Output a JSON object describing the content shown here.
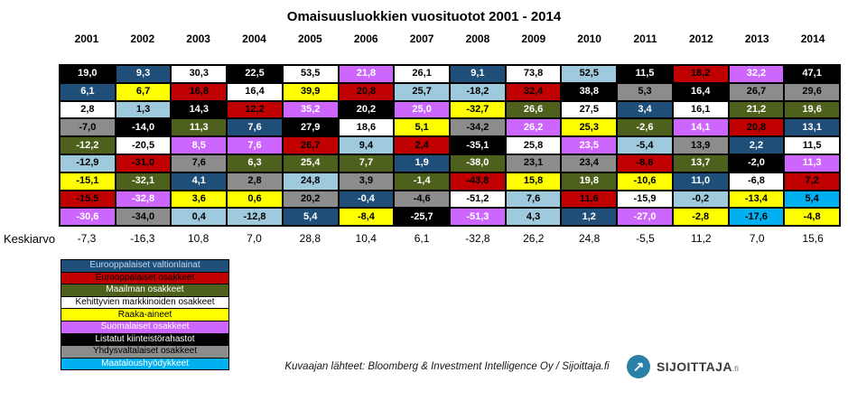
{
  "title": "Omaisuusluokkien vuosituotot 2001 - 2014",
  "caption": "Kuvaajan lähteet: Bloomberg & Investment Intelligence Oy / Sijoittaja.fi",
  "logo": {
    "text": "SIJOITTAJA",
    "suffix": ".fi",
    "circle_color": "#2B80A8",
    "arrow": "↗"
  },
  "chart_data": {
    "type": "table",
    "title": "Omaisuusluokkien vuosituotot 2001 - 2014",
    "years": [
      "2001",
      "2002",
      "2003",
      "2004",
      "2005",
      "2006",
      "2007",
      "2008",
      "2009",
      "2010",
      "2011",
      "2012",
      "2013",
      "2014"
    ],
    "average_label": "Keskiarvo",
    "averages": [
      "-7,3",
      "-16,3",
      "10,8",
      "7,0",
      "28,8",
      "10,4",
      "6,1",
      "-32,8",
      "26,2",
      "24,8",
      "-5,5",
      "11,2",
      "7,0",
      "15,6"
    ],
    "colors": {
      "black": {
        "bg": "#000000",
        "fg": "#FFFFFF"
      },
      "darkblue": {
        "bg": "#1F4E79",
        "fg": "#FFFFFF"
      },
      "white": {
        "bg": "#FFFFFF",
        "fg": "#000000"
      },
      "red": {
        "bg": "#C00000",
        "fg": "#000000"
      },
      "yellow": {
        "bg": "#FFFF00",
        "fg": "#000000"
      },
      "violet": {
        "bg": "#CC66FF",
        "fg": "#FFFFFF"
      },
      "olive": {
        "bg": "#4E611C",
        "fg": "#FFFFFF"
      },
      "gray": {
        "bg": "#8C8C8C",
        "fg": "#000000"
      },
      "lightblue": {
        "bg": "#9FC9DC",
        "fg": "#000000"
      },
      "cyan": {
        "bg": "#00B0F0",
        "fg": "#000000"
      }
    },
    "rows": [
      [
        [
          "19,0",
          "black"
        ],
        [
          "9,3",
          "darkblue"
        ],
        [
          "30,3",
          "white"
        ],
        [
          "22,5",
          "black"
        ],
        [
          "53,5",
          "white"
        ],
        [
          "21,8",
          "violet"
        ],
        [
          "26,1",
          "white"
        ],
        [
          "9,1",
          "darkblue"
        ],
        [
          "73,8",
          "white"
        ],
        [
          "52,5",
          "lightblue"
        ],
        [
          "11,5",
          "black"
        ],
        [
          "18,2",
          "red"
        ],
        [
          "32,2",
          "violet"
        ],
        [
          "47,1",
          "black"
        ]
      ],
      [
        [
          "6,1",
          "darkblue"
        ],
        [
          "6,7",
          "yellow"
        ],
        [
          "16,8",
          "red"
        ],
        [
          "16,4",
          "white"
        ],
        [
          "39,9",
          "yellow"
        ],
        [
          "20,8",
          "red"
        ],
        [
          "25,7",
          "lightblue"
        ],
        [
          "-18,2",
          "lightblue"
        ],
        [
          "32,4",
          "red"
        ],
        [
          "38,8",
          "black"
        ],
        [
          "5,3",
          "gray"
        ],
        [
          "16,4",
          "black"
        ],
        [
          "26,7",
          "gray"
        ],
        [
          "29,6",
          "gray"
        ]
      ],
      [
        [
          "2,8",
          "white"
        ],
        [
          "1,3",
          "lightblue"
        ],
        [
          "14,3",
          "black"
        ],
        [
          "12,2",
          "red"
        ],
        [
          "35,2",
          "violet"
        ],
        [
          "20,2",
          "black"
        ],
        [
          "25,0",
          "violet"
        ],
        [
          "-32,7",
          "yellow"
        ],
        [
          "26,6",
          "olive"
        ],
        [
          "27,5",
          "white"
        ],
        [
          "3,4",
          "darkblue"
        ],
        [
          "16,1",
          "white"
        ],
        [
          "21,2",
          "olive"
        ],
        [
          "19,6",
          "olive"
        ]
      ],
      [
        [
          "-7,0",
          "gray"
        ],
        [
          "-14,0",
          "black"
        ],
        [
          "11,3",
          "olive"
        ],
        [
          "7,6",
          "darkblue"
        ],
        [
          "27,9",
          "black"
        ],
        [
          "18,6",
          "white"
        ],
        [
          "5,1",
          "yellow"
        ],
        [
          "-34,2",
          "gray"
        ],
        [
          "26,2",
          "violet"
        ],
        [
          "25,3",
          "yellow"
        ],
        [
          "-2,6",
          "olive"
        ],
        [
          "14,1",
          "violet"
        ],
        [
          "20,8",
          "red"
        ],
        [
          "13,1",
          "darkblue"
        ]
      ],
      [
        [
          "-12,2",
          "olive"
        ],
        [
          "-20,5",
          "white"
        ],
        [
          "8,5",
          "violet"
        ],
        [
          "7,6",
          "violet"
        ],
        [
          "26,7",
          "red"
        ],
        [
          "9,4",
          "lightblue"
        ],
        [
          "2,4",
          "red"
        ],
        [
          "-35,1",
          "black"
        ],
        [
          "25,8",
          "white"
        ],
        [
          "23,5",
          "violet"
        ],
        [
          "-5,4",
          "lightblue"
        ],
        [
          "13,9",
          "gray"
        ],
        [
          "2,2",
          "darkblue"
        ],
        [
          "11,5",
          "white"
        ]
      ],
      [
        [
          "-12,9",
          "lightblue"
        ],
        [
          "-31,0",
          "red"
        ],
        [
          "7,6",
          "gray"
        ],
        [
          "6,3",
          "olive"
        ],
        [
          "25,4",
          "olive"
        ],
        [
          "7,7",
          "olive"
        ],
        [
          "1,9",
          "darkblue"
        ],
        [
          "-38,0",
          "olive"
        ],
        [
          "23,1",
          "gray"
        ],
        [
          "23,4",
          "gray"
        ],
        [
          "-8,6",
          "red"
        ],
        [
          "13,7",
          "olive"
        ],
        [
          "-2,0",
          "black"
        ],
        [
          "11,3",
          "violet"
        ]
      ],
      [
        [
          "-15,1",
          "yellow"
        ],
        [
          "-32,1",
          "olive"
        ],
        [
          "4,1",
          "darkblue"
        ],
        [
          "2,8",
          "gray"
        ],
        [
          "24,8",
          "lightblue"
        ],
        [
          "3,9",
          "gray"
        ],
        [
          "-1,4",
          "olive"
        ],
        [
          "-43,8",
          "red"
        ],
        [
          "15,8",
          "yellow"
        ],
        [
          "19,8",
          "olive"
        ],
        [
          "-10,6",
          "yellow"
        ],
        [
          "11,0",
          "darkblue"
        ],
        [
          "-6,8",
          "white"
        ],
        [
          "7,2",
          "red"
        ]
      ],
      [
        [
          "-15,5",
          "red"
        ],
        [
          "-32,8",
          "violet"
        ],
        [
          "3,6",
          "yellow"
        ],
        [
          "0,6",
          "yellow"
        ],
        [
          "20,2",
          "gray"
        ],
        [
          "-0,4",
          "darkblue"
        ],
        [
          "-4,6",
          "gray"
        ],
        [
          "-51,2",
          "white"
        ],
        [
          "7,6",
          "lightblue"
        ],
        [
          "11,6",
          "red"
        ],
        [
          "-15,9",
          "white"
        ],
        [
          "-0,2",
          "lightblue"
        ],
        [
          "-13,4",
          "yellow"
        ],
        [
          "5,4",
          "cyan"
        ]
      ],
      [
        [
          "-30,6",
          "violet"
        ],
        [
          "-34,0",
          "gray"
        ],
        [
          "0,4",
          "lightblue"
        ],
        [
          "-12,8",
          "lightblue"
        ],
        [
          "5,4",
          "darkblue"
        ],
        [
          "-8,4",
          "yellow"
        ],
        [
          "-25,7",
          "black"
        ],
        [
          "-51,3",
          "violet"
        ],
        [
          "4,3",
          "lightblue"
        ],
        [
          "1,2",
          "darkblue"
        ],
        [
          "-27,0",
          "violet"
        ],
        [
          "-2,8",
          "yellow"
        ],
        [
          "-17,6",
          "cyan"
        ],
        [
          "-4,8",
          "yellow"
        ]
      ]
    ],
    "legend": [
      {
        "label": "Eurooppalaiset valtionlainat",
        "color": "darkblue",
        "fg": "#BFD8F2"
      },
      {
        "label": "Eurooppalaiset osakkeet",
        "color": "red",
        "fg": "#000000"
      },
      {
        "label": "Maailman osakkeet",
        "color": "olive",
        "fg": "#FFFFFF"
      },
      {
        "label": "Kehittyvien markkinoiden osakkeet",
        "color": "white",
        "fg": "#000000"
      },
      {
        "label": "Raaka-aineet",
        "color": "yellow",
        "fg": "#000000"
      },
      {
        "label": "Suomalaiset osakkeet",
        "color": "violet",
        "fg": "#FFFFFF"
      },
      {
        "label": "Listatut kiinteistörahastot",
        "color": "black",
        "fg": "#FFFFFF"
      },
      {
        "label": "Yhdysvaltalaiset osakkeet",
        "color": "gray",
        "fg": "#000000"
      },
      {
        "label": "Maataloushyödykkeet",
        "color": "cyan",
        "fg": "#FFFFFF"
      }
    ]
  }
}
